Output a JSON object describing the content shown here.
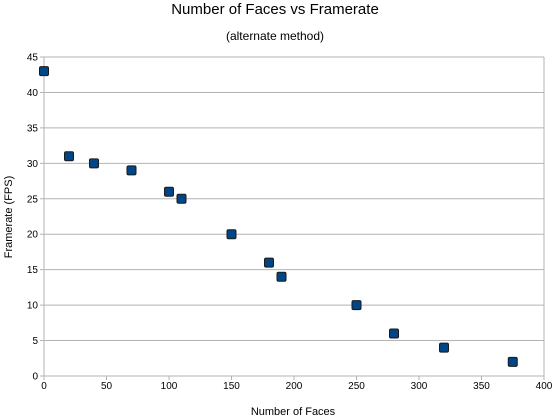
{
  "chart_data": {
    "type": "scatter",
    "title": "Number of Faces vs Framerate",
    "subtitle": "(alternate method)",
    "xlabel": "Number of Faces",
    "ylabel": "Framerate (FPS)",
    "xlim": [
      0,
      400
    ],
    "ylim": [
      0,
      45
    ],
    "xticks": [
      0,
      50,
      100,
      150,
      200,
      250,
      300,
      350,
      400
    ],
    "yticks": [
      0,
      5,
      10,
      15,
      20,
      25,
      30,
      35,
      40,
      45
    ],
    "grid": true,
    "legend": "none",
    "marker_color": "#004586",
    "points": [
      {
        "x": 0,
        "y": 43
      },
      {
        "x": 20,
        "y": 31
      },
      {
        "x": 40,
        "y": 30
      },
      {
        "x": 70,
        "y": 29
      },
      {
        "x": 100,
        "y": 26
      },
      {
        "x": 110,
        "y": 25
      },
      {
        "x": 150,
        "y": 20
      },
      {
        "x": 180,
        "y": 16
      },
      {
        "x": 190,
        "y": 14
      },
      {
        "x": 250,
        "y": 10
      },
      {
        "x": 280,
        "y": 6
      },
      {
        "x": 320,
        "y": 4
      },
      {
        "x": 375,
        "y": 2
      }
    ]
  }
}
